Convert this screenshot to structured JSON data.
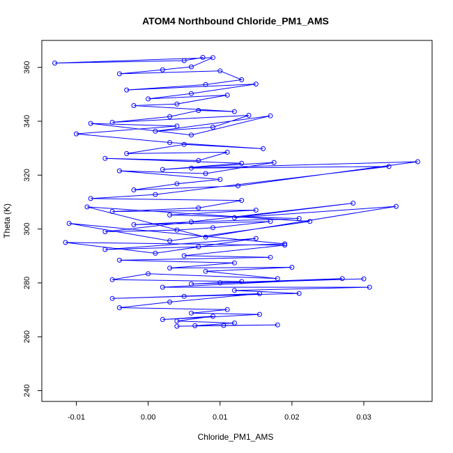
{
  "chart_data": {
    "type": "line",
    "title": "ATOM4 Northbound Chloride_PM1_AMS",
    "xlabel": "Chloride_PM1_AMS",
    "ylabel": "Theta (K)",
    "xlim": [
      -0.0148,
      0.0395
    ],
    "ylim": [
      236,
      370
    ],
    "xticks": [
      -0.01,
      0.0,
      0.01,
      0.02,
      0.03
    ],
    "xtick_labels": [
      "-0.01",
      "0.00",
      "0.01",
      "0.02",
      "0.03"
    ],
    "yticks": [
      240,
      260,
      280,
      300,
      320,
      340,
      360
    ],
    "ytick_labels": [
      "240",
      "260",
      "280",
      "300",
      "320",
      "340",
      "360"
    ],
    "grid": false,
    "marker": "open-circle",
    "series": [
      {
        "color": "#0000ff",
        "x": [
          0.0076,
          0.005,
          -0.013,
          0.009,
          0.006,
          0.002,
          -0.004,
          0.01,
          0.013,
          0.008,
          -0.003,
          0.015,
          0.006,
          0.0,
          0.011,
          0.004,
          -0.002,
          0.012,
          0.007,
          0.003,
          -0.005,
          0.014,
          0.009,
          0.001,
          0.017,
          0.006,
          -0.008,
          0.004,
          -0.01,
          0.003,
          0.016,
          0.005,
          -0.003,
          0.011,
          0.007,
          -0.006,
          0.013,
          0.002,
          0.0175,
          0.008,
          -0.004,
          0.01,
          0.004,
          -0.002,
          0.0125,
          0.0375,
          0.006,
          0.0335,
          0.001,
          -0.008,
          0.013,
          0.007,
          -0.005,
          0.015,
          0.003,
          0.021,
          0.006,
          -0.002,
          0.017,
          0.009,
          0.004,
          -0.006,
          0.0285,
          0.012,
          0.0345,
          0.008,
          -0.0085,
          0.0225,
          0.003,
          -0.011,
          0.019,
          0.007,
          -0.006,
          0.015,
          0.001,
          -0.0115,
          0.019,
          0.005,
          0.017,
          -0.004,
          0.012,
          0.003,
          0.02,
          0.008,
          0.018,
          0.0,
          -0.005,
          0.013,
          0.006,
          0.03,
          0.01,
          0.027,
          0.002,
          0.0308,
          0.012,
          0.021,
          0.005,
          -0.005,
          0.0155,
          0.003,
          -0.004,
          0.011,
          0.006,
          0.0155,
          0.002,
          0.009,
          0.004,
          0.012,
          0.0065,
          0.018,
          0.004,
          0.0105
        ],
        "y": [
          363.7,
          362.5,
          361.6,
          363.6,
          360.2,
          359.1,
          357.6,
          358.7,
          355.4,
          353.6,
          351.6,
          353.8,
          350.3,
          348.3,
          349.7,
          346.4,
          345.8,
          343.6,
          344.0,
          341.7,
          339.6,
          342.2,
          337.8,
          336.3,
          342.0,
          334.9,
          339.2,
          338.2,
          335.3,
          332.1,
          329.8,
          331.4,
          328.0,
          328.5,
          325.4,
          326.2,
          324.4,
          322.1,
          324.7,
          320.6,
          321.6,
          318.4,
          316.8,
          314.5,
          316.0,
          325.0,
          322.6,
          323.2,
          312.8,
          311.3,
          310.6,
          307.8,
          306.5,
          307.0,
          305.2,
          303.9,
          302.6,
          301.6,
          302.8,
          300.5,
          299.6,
          299.0,
          309.6,
          304.2,
          308.4,
          297.0,
          308.2,
          302.8,
          295.6,
          302.1,
          294.5,
          293.4,
          292.4,
          296.5,
          291.0,
          295.0,
          294.0,
          290.1,
          289.5,
          288.4,
          287.4,
          285.5,
          285.8,
          284.3,
          281.6,
          283.4,
          281.2,
          280.5,
          279.6,
          281.5,
          280.0,
          281.6,
          278.4,
          278.4,
          277.2,
          276.1,
          275.0,
          274.2,
          276.0,
          272.9,
          270.8,
          270.1,
          268.8,
          268.3,
          266.4,
          267.6,
          265.8,
          265.1,
          264.1,
          264.4,
          263.9,
          264.2
        ]
      }
    ]
  }
}
